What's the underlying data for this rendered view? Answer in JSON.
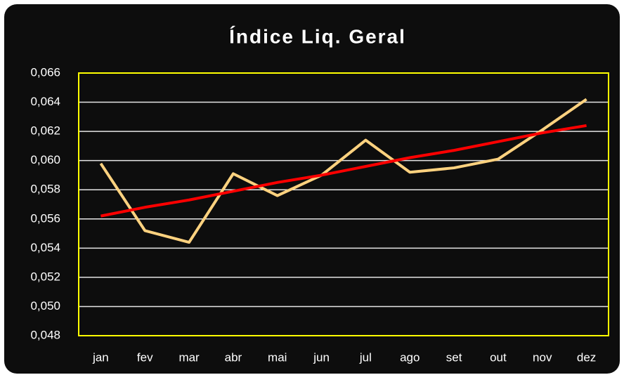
{
  "chart_data": {
    "type": "line",
    "title": "Índice Liq. Geral",
    "categories": [
      "jan",
      "fev",
      "mar",
      "abr",
      "mai",
      "jun",
      "jul",
      "ago",
      "set",
      "out",
      "nov",
      "dez"
    ],
    "series": [
      {
        "color": "#ffd27f",
        "values": [
          0.0598,
          0.0552,
          0.0544,
          0.0591,
          0.0576,
          0.059,
          0.0614,
          0.0592,
          0.0595,
          0.0601,
          0.0621,
          0.0642
        ]
      },
      {
        "color": "#ff0000",
        "values": [
          0.0562,
          0.0568,
          0.0573,
          0.0579,
          0.0585,
          0.059,
          0.0596,
          0.0602,
          0.0607,
          0.0613,
          0.0619,
          0.0624
        ]
      }
    ],
    "ylim": [
      0.048,
      0.066
    ],
    "yticks": [
      {
        "value": 0.048,
        "label": "0,048"
      },
      {
        "value": 0.05,
        "label": "0,050"
      },
      {
        "value": 0.052,
        "label": "0,052"
      },
      {
        "value": 0.054,
        "label": "0,054"
      },
      {
        "value": 0.056,
        "label": "0,056"
      },
      {
        "value": 0.058,
        "label": "0,058"
      },
      {
        "value": 0.06,
        "label": "0,060"
      },
      {
        "value": 0.062,
        "label": "0,062"
      },
      {
        "value": 0.064,
        "label": "0,064"
      },
      {
        "value": 0.066,
        "label": "0,066"
      }
    ],
    "grid": true,
    "frame_color": "#ffff00"
  }
}
